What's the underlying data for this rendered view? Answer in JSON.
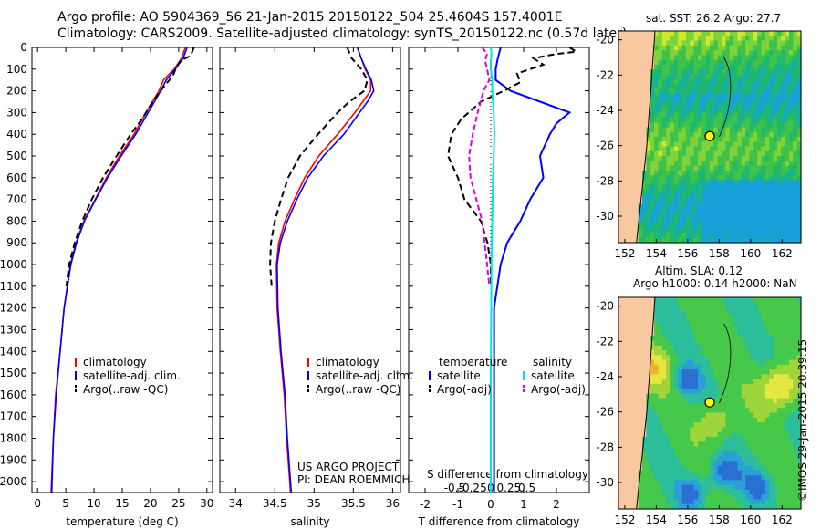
{
  "header": {
    "title_line1": "Argo profile: AO 5904369_56 21-Jan-2015 20150122_504 25.4604S 157.4001E",
    "title_line2": "Climatology: CARS2009. Satellite-adjusted climatology: synTS_20150122.nc (0.57d later)"
  },
  "colors": {
    "climatology": "#ff0000",
    "satellite": "#0000ff",
    "argo": "#000000",
    "sal_satellite": "#00e5e5",
    "sal_argo": "#e000e0",
    "land": "#f8c8a0"
  },
  "chart_data": [
    {
      "type": "line",
      "name": "temperature-profile",
      "xlabel": "temperature (deg C)",
      "ylabel": "",
      "xlim": [
        -1,
        31
      ],
      "ylim": [
        2050,
        0
      ],
      "xticks": [
        0,
        5,
        10,
        15,
        20,
        25,
        30
      ],
      "yticks": [
        0,
        100,
        200,
        300,
        400,
        500,
        600,
        700,
        800,
        900,
        1000,
        1100,
        1200,
        1300,
        1400,
        1500,
        1600,
        1700,
        1800,
        1900,
        2000
      ],
      "legend": [
        "climatology",
        "satellite-adj. clim.",
        "Argo(..raw -QC)"
      ],
      "series": [
        {
          "name": "climatology",
          "depth": [
            0,
            50,
            100,
            150,
            200,
            300,
            400,
            500,
            600,
            700,
            800,
            900,
            1000,
            1200,
            1400,
            1600,
            1800,
            2050
          ],
          "values": [
            26.2,
            25.5,
            24.2,
            22.3,
            21.5,
            19.2,
            17.1,
            14.5,
            12.2,
            10.2,
            8.2,
            6.8,
            5.8,
            4.7,
            4.0,
            3.2,
            2.8,
            2.4
          ]
        },
        {
          "name": "satellite-adj. clim.",
          "depth": [
            0,
            50,
            100,
            150,
            200,
            300,
            400,
            500,
            600,
            700,
            800,
            900,
            1000,
            1200,
            1400,
            1600,
            1800,
            2050
          ],
          "values": [
            26.5,
            25.8,
            24.4,
            22.8,
            21.8,
            19.6,
            17.4,
            14.8,
            12.4,
            10.3,
            8.3,
            6.9,
            5.9,
            4.7,
            4.0,
            3.3,
            2.8,
            2.5
          ]
        },
        {
          "name": "Argo(..raw -QC)",
          "depth": [
            0,
            20,
            40,
            60,
            90,
            130,
            180,
            250,
            330,
            400,
            500,
            600,
            700,
            800,
            900,
            1000,
            1100
          ],
          "values": [
            27.7,
            27.4,
            27.0,
            25.4,
            24.6,
            24.0,
            22.4,
            20.4,
            18.5,
            16.5,
            14.0,
            11.6,
            9.6,
            7.9,
            6.6,
            5.6,
            5.1
          ]
        }
      ]
    },
    {
      "type": "line",
      "name": "salinity-profile",
      "xlabel": "salinity",
      "ylabel": "",
      "xlim": [
        33.8,
        36.1
      ],
      "ylim": [
        2050,
        0
      ],
      "xticks": [
        34,
        34.5,
        35,
        35.5,
        36
      ],
      "legend": [
        "climatology",
        "satellite-adj. clim.",
        "Argo(..raw -QC)"
      ],
      "annotation": [
        "US ARGO PROJECT",
        "PI: DEAN ROEMMICH"
      ],
      "series": [
        {
          "name": "climatology",
          "depth": [
            0,
            50,
            100,
            150,
            200,
            250,
            300,
            400,
            500,
            600,
            700,
            800,
            900,
            1000,
            1200,
            1400,
            1600,
            1800,
            2050
          ],
          "values": [
            35.55,
            35.6,
            35.65,
            35.72,
            35.72,
            35.62,
            35.52,
            35.3,
            35.06,
            34.88,
            34.75,
            34.63,
            34.55,
            34.52,
            34.53,
            34.57,
            34.62,
            34.65,
            34.7
          ]
        },
        {
          "name": "satellite-adj. clim.",
          "depth": [
            0,
            50,
            100,
            150,
            200,
            250,
            300,
            400,
            500,
            600,
            700,
            800,
            900,
            1000,
            1200,
            1400,
            1600,
            1800,
            2050
          ],
          "values": [
            35.55,
            35.6,
            35.66,
            35.73,
            35.76,
            35.68,
            35.58,
            35.38,
            35.12,
            34.92,
            34.78,
            34.66,
            34.57,
            34.53,
            34.54,
            34.58,
            34.63,
            34.66,
            34.71
          ]
        },
        {
          "name": "Argo(..raw -QC)",
          "depth": [
            0,
            50,
            100,
            150,
            200,
            250,
            300,
            400,
            500,
            600,
            700,
            800,
            900,
            1000,
            1100
          ],
          "values": [
            35.42,
            35.48,
            35.6,
            35.68,
            35.64,
            35.45,
            35.3,
            35.05,
            34.82,
            34.67,
            34.58,
            34.5,
            34.45,
            34.44,
            34.46
          ]
        }
      ]
    },
    {
      "type": "line",
      "name": "difference-profile",
      "xlabel": "T difference from climatology",
      "xlabel_top": "S difference from climatology",
      "xlim": [
        -2.5,
        3
      ],
      "ylim": [
        2050,
        0
      ],
      "xticks": [
        -2,
        -1,
        0,
        1,
        2
      ],
      "sticks": [
        -0.5,
        -0.25,
        0,
        0.25,
        0.5
      ],
      "legend_headers": [
        "temperature",
        "salinity"
      ],
      "legend": [
        "satellite",
        "Argo(-adj)",
        "satellite",
        "Argo(-adj)"
      ],
      "series": [
        {
          "name": "T satellite",
          "depth": [
            0,
            30,
            60,
            100,
            150,
            200,
            250,
            300,
            350,
            400,
            500,
            600,
            700,
            800,
            900,
            1000,
            1200,
            1500,
            2050
          ],
          "values": [
            0.3,
            0.25,
            0.2,
            0.15,
            0.15,
            0.6,
            1.5,
            2.4,
            2.0,
            1.8,
            1.5,
            1.6,
            1.2,
            0.9,
            0.5,
            0.3,
            0.1,
            0.1,
            0.1
          ]
        },
        {
          "name": "T Argo(-adj)",
          "depth": [
            0,
            20,
            30,
            50,
            80,
            120,
            160,
            200,
            250,
            330,
            400,
            500,
            600,
            700,
            800,
            900,
            1000,
            1100
          ],
          "values": [
            2.4,
            2.6,
            2.0,
            1.3,
            1.6,
            0.8,
            0.9,
            0.4,
            -0.3,
            -0.9,
            -1.2,
            -1.3,
            -1.0,
            -0.8,
            -0.3,
            -0.1,
            0.0,
            0.0
          ]
        },
        {
          "name": "S satellite",
          "depth": [
            0,
            30,
            60,
            100,
            150,
            200,
            300,
            400,
            500,
            600,
            800,
            1000,
            1500,
            2050
          ],
          "values": [
            0.0,
            0.01,
            0.0,
            0.0,
            0.02,
            0.02,
            0.04,
            0.05,
            0.04,
            0.03,
            0.02,
            0.01,
            0.0,
            0.0
          ]
        },
        {
          "name": "S Argo(-adj)",
          "depth": [
            0,
            30,
            60,
            100,
            150,
            200,
            300,
            400,
            500,
            600,
            700,
            800,
            1000,
            1100
          ],
          "values": [
            -0.12,
            -0.05,
            -0.08,
            -0.05,
            -0.02,
            -0.1,
            -0.18,
            -0.25,
            -0.3,
            -0.28,
            -0.2,
            -0.12,
            -0.05,
            -0.02
          ]
        }
      ]
    },
    {
      "type": "heatmap",
      "name": "sst-map",
      "title": "sat. SST: 26.2 Argo: 27.7",
      "xticks": [
        152,
        154,
        156,
        158,
        160,
        162
      ],
      "yticks": [
        -20,
        -22,
        -24,
        -26,
        -28,
        -30
      ],
      "marker": {
        "lon": 157.4,
        "lat": -25.46
      }
    },
    {
      "type": "heatmap",
      "name": "sla-map",
      "title_line1": "Altim. SLA: 0.12",
      "title_line2": "Argo h1000: 0.14 h2000: NaN",
      "xticks": [
        152,
        154,
        156,
        158,
        160,
        162
      ],
      "yticks": [
        -20,
        -22,
        -24,
        -26,
        -28,
        -30
      ],
      "marker": {
        "lon": 157.4,
        "lat": -25.46
      }
    }
  ],
  "credit": "©IMOS 29-Jan-2015 20:39:15"
}
